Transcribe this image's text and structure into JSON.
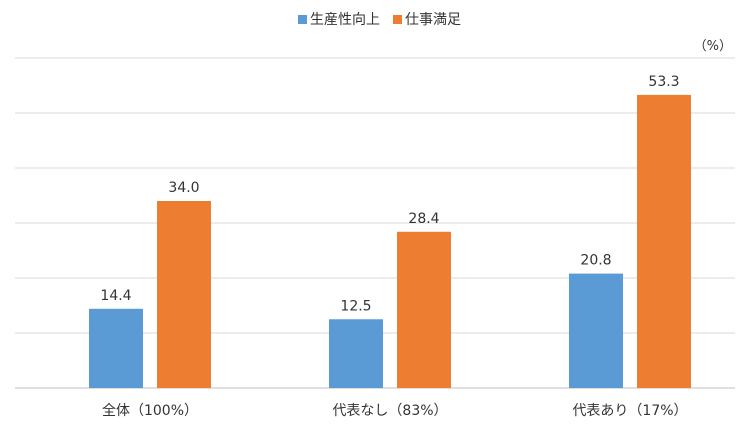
{
  "chart_data": {
    "type": "bar",
    "unit": "（%）",
    "categories": [
      "全体（100%）",
      "代表なし（83%）",
      "代表あり（17%）"
    ],
    "series": [
      {
        "name": "生産性向上",
        "color": "#5B9BD5",
        "values": [
          14.4,
          12.5,
          20.8
        ]
      },
      {
        "name": "仕事満足",
        "color": "#ED7D31",
        "values": [
          34.0,
          28.4,
          53.3
        ]
      }
    ],
    "ylim": [
      0,
      60
    ],
    "ytick_step": 10,
    "grid": true,
    "legend_position": "top-center",
    "data_labels": [
      [
        "14.4",
        "12.5",
        "20.8"
      ],
      [
        "34.0",
        "28.4",
        "53.3"
      ]
    ]
  }
}
